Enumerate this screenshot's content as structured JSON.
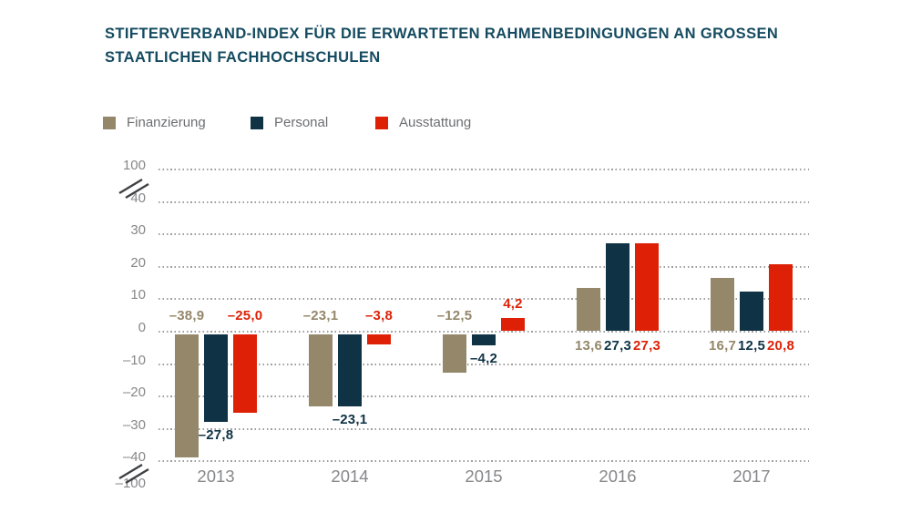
{
  "title": {
    "lines": [
      "STIFTERVERBAND-INDEX FÜR DIE ERWARTETEN RAHMENBEDINGUNGEN AN GROSSEN",
      "STAATLICHEN FACHHOCHSCHULEN"
    ],
    "color": "#154b60"
  },
  "legend": {
    "items": [
      {
        "label": "Finanzierung",
        "color": "#94876a"
      },
      {
        "label": "Personal",
        "color": "#0f3345"
      },
      {
        "label": "Ausstattung",
        "color": "#de2106"
      }
    ]
  },
  "chart_data": {
    "type": "bar",
    "title": "Stifterverband-Index für die erwarteten Rahmenbedingungen an grossen staatlichen Fachhochschulen",
    "categories": [
      "2013",
      "2014",
      "2015",
      "2016",
      "2017"
    ],
    "series": [
      {
        "name": "Finanzierung",
        "color": "#94876a",
        "values": [
          -38.9,
          -23.1,
          -12.5,
          13.6,
          16.7
        ],
        "value_labels": [
          "–38,9",
          "–23,1",
          "–12,5",
          "13,6",
          "16,7"
        ]
      },
      {
        "name": "Personal",
        "color": "#0f3345",
        "values": [
          -27.8,
          -23.1,
          -4.2,
          27.3,
          12.5
        ],
        "value_labels": [
          "–27,8",
          "–23,1",
          "–4,2",
          "27,3",
          "12,5"
        ]
      },
      {
        "name": "Ausstattung",
        "color": "#de2106",
        "values": [
          -25.0,
          -3.8,
          4.2,
          27.3,
          20.8
        ],
        "value_labels": [
          "–25,0",
          "–3,8",
          "4,2",
          "27,3",
          "20,8"
        ]
      }
    ],
    "y_axis": {
      "tick_values": [
        100,
        40,
        30,
        20,
        10,
        0,
        -10,
        -20,
        -30,
        -40,
        -100
      ],
      "tick_labels": [
        "100",
        "40",
        "30",
        "20",
        "10",
        "0",
        "–10",
        "–20",
        "–30",
        "–40",
        "–100"
      ],
      "broken_axis": true,
      "visible_range": [
        -40,
        40
      ],
      "grid_style": "dotted",
      "grid_color": "#9e9e9e",
      "label_color": "#86878a"
    },
    "legend_position": "top-left"
  }
}
